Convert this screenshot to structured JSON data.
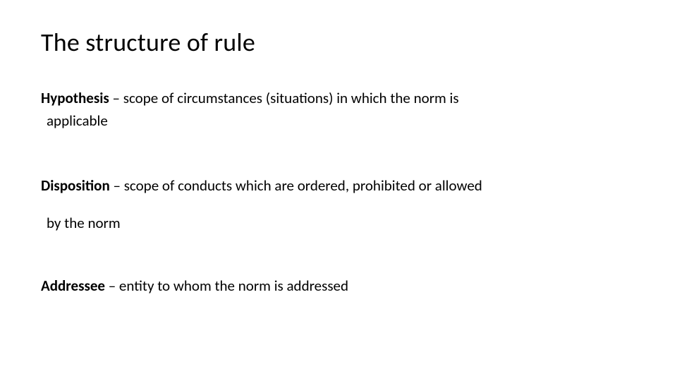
{
  "title": "The structure of rule",
  "definitions": [
    {
      "term": "Hypothesis",
      "desc_line1": " – scope of circumstances (situations) in which the norm is",
      "desc_line2": "applicable"
    },
    {
      "term": "Disposition",
      "desc_line1": " – scope of conducts which are ordered, prohibited or allowed",
      "desc_line2": "by the norm"
    },
    {
      "term": "Addressee",
      "desc_line1": " – entity to whom the norm is addressed",
      "desc_line2": ""
    }
  ],
  "styling": {
    "background_color": "#ffffff",
    "text_color": "#000000",
    "title_fontsize": 36,
    "title_fontweight": 400,
    "body_fontsize": 21,
    "term_fontweight": 700,
    "font_family": "Calibri"
  }
}
